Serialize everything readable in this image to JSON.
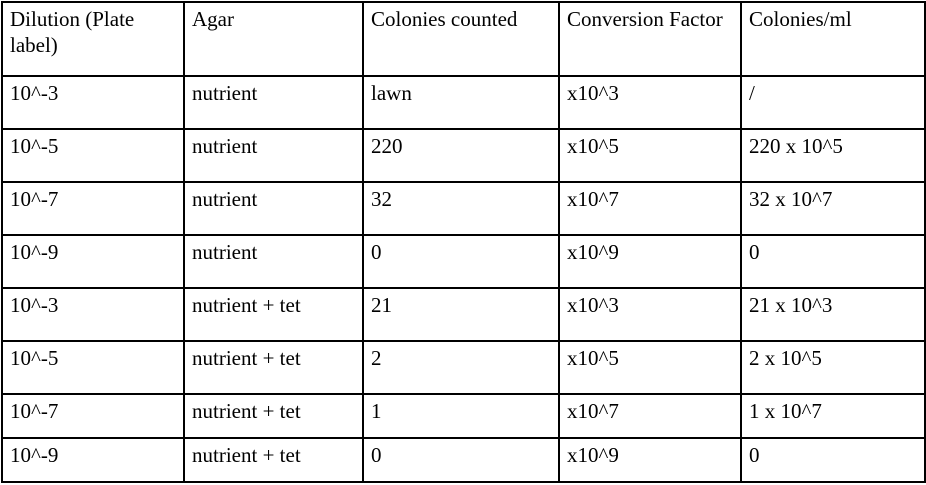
{
  "table": {
    "columns": [
      "Dilution (Plate label)",
      "Agar",
      "Colonies counted",
      "Conversion Factor",
      "Colonies/ml"
    ],
    "rows": [
      [
        "10^-3",
        "nutrient",
        "lawn",
        "x10^3",
        "/"
      ],
      [
        "10^-5",
        "nutrient",
        "220",
        "x10^5",
        "220 x 10^5"
      ],
      [
        "10^-7",
        "nutrient",
        "32",
        "x10^7",
        "32 x 10^7"
      ],
      [
        "10^-9",
        "nutrient",
        "0",
        "x10^9",
        "0"
      ],
      [
        "10^-3",
        "nutrient + tet",
        "21",
        "x10^3",
        "21 x 10^3"
      ],
      [
        "10^-5",
        "nutrient + tet",
        "2",
        "x10^5",
        "2 x 10^5"
      ],
      [
        "10^-7",
        "nutrient + tet",
        "1",
        "x10^7",
        "1 x 10^7"
      ],
      [
        "10^-9",
        "nutrient + tet",
        "0",
        "x10^9",
        "0"
      ]
    ],
    "colors": {
      "border": "#000000",
      "text": "#000000",
      "background": "#ffffff"
    }
  }
}
